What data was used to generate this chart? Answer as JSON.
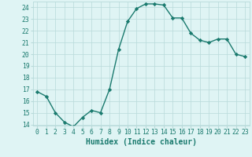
{
  "x": [
    0,
    1,
    2,
    3,
    4,
    5,
    6,
    7,
    8,
    9,
    10,
    11,
    12,
    13,
    14,
    15,
    16,
    17,
    18,
    19,
    20,
    21,
    22,
    23
  ],
  "y": [
    16.8,
    16.4,
    15.0,
    14.2,
    13.8,
    14.6,
    15.2,
    15.0,
    17.0,
    20.4,
    22.8,
    23.9,
    24.3,
    24.3,
    24.2,
    23.1,
    23.1,
    21.8,
    21.2,
    21.0,
    21.3,
    21.3,
    20.0,
    19.8
  ],
  "line_color": "#1a7a6e",
  "marker": "D",
  "marker_size": 2.2,
  "bg_color": "#dff4f4",
  "grid_color": "#b8dada",
  "xlabel": "Humidex (Indice chaleur)",
  "xlim": [
    -0.5,
    23.5
  ],
  "ylim": [
    13.9,
    24.5
  ],
  "yticks": [
    14,
    15,
    16,
    17,
    18,
    19,
    20,
    21,
    22,
    23,
    24
  ],
  "xticks": [
    0,
    1,
    2,
    3,
    4,
    5,
    6,
    7,
    8,
    9,
    10,
    11,
    12,
    13,
    14,
    15,
    16,
    17,
    18,
    19,
    20,
    21,
    22,
    23
  ],
  "tick_label_fontsize": 5.8,
  "xlabel_fontsize": 7.0,
  "axis_color": "#1a7a6e",
  "linewidth": 1.0
}
